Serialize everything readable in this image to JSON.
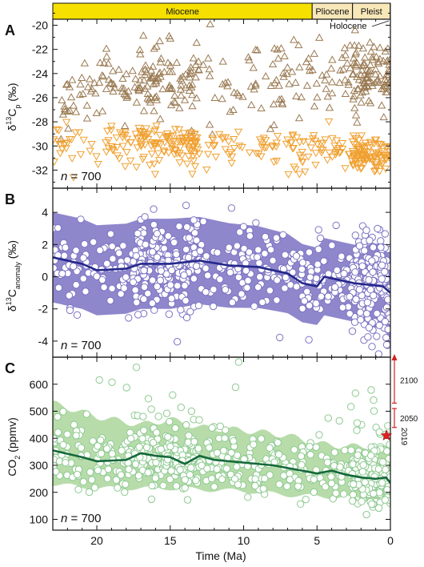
{
  "figure": {
    "epochs": [
      {
        "label": "Miocene",
        "start": 23.0,
        "end": 5.33,
        "color": "#f5e000"
      },
      {
        "label": "Pliocene",
        "start": 5.33,
        "end": 2.58,
        "color": "#f8e7b8"
      },
      {
        "label": "Pleist",
        "start": 2.58,
        "end": 0.0117,
        "color": "#f8e7b8"
      }
    ],
    "holocene_label": "Holocene",
    "xlabel": "Time (Ma)",
    "x_ticks": [
      "20",
      "15",
      "10",
      "5",
      "0"
    ],
    "x_tick_values": [
      20,
      15,
      10,
      5,
      0
    ],
    "xlim": [
      23,
      0
    ]
  },
  "chart_data": [
    {
      "type": "scatter",
      "panel_label": "A",
      "ylabel": "δ13Cp (‰)",
      "ylabel_main": "δ",
      "ylabel_sup": "13",
      "ylabel_c": "C",
      "ylabel_sub": "p",
      "ylabel_unit": "(‰)",
      "ylim": [
        -33.5,
        -19.5
      ],
      "y_ticks": [
        -20,
        -22,
        -24,
        -26,
        -28,
        -30,
        -32
      ],
      "y_tick_labels": [
        "-20",
        "-22",
        "-24",
        "-26",
        "-28",
        "-30",
        "-32"
      ],
      "n_label_pre": "n",
      "n_label_post": " = 700",
      "series": [
        {
          "marker": "triangle-up",
          "color": "#9a7a52",
          "approx_mean": -24.8,
          "approx_spread": 1.4,
          "trend": [
            [
              23,
              -26.5
            ],
            [
              20,
              -25.3
            ],
            [
              16,
              -24.6
            ],
            [
              13,
              -24.8
            ],
            [
              10,
              -25.0
            ],
            [
              6,
              -24.8
            ],
            [
              3,
              -24.4
            ],
            [
              0,
              -24.2
            ]
          ]
        },
        {
          "marker": "triangle-down",
          "color": "#f0a030",
          "approx_mean": -29.9,
          "approx_spread": 0.9,
          "trend": [
            [
              23,
              -29.8
            ],
            [
              20,
              -29.6
            ],
            [
              16,
              -29.8
            ],
            [
              13,
              -29.9
            ],
            [
              10,
              -30.0
            ],
            [
              6,
              -30.0
            ],
            [
              3,
              -30.4
            ],
            [
              0,
              -30.8
            ]
          ]
        }
      ]
    },
    {
      "type": "scatter",
      "panel_label": "B",
      "ylabel": "δ13Canomaly (‰)",
      "ylabel_main": "δ",
      "ylabel_sup": "13",
      "ylabel_c": "C",
      "ylabel_sub": "anomaly",
      "ylabel_unit": "(‰)",
      "ylim": [
        -5,
        5.5
      ],
      "y_ticks": [
        4,
        2,
        0,
        -2,
        -4
      ],
      "y_tick_labels": [
        "4",
        "2",
        "0",
        "-2",
        "-4"
      ],
      "n_label_pre": "n",
      "n_label_post": " = 700",
      "band_color": "#8f87cc",
      "line_color": "#25288a",
      "point_stroke": "#7b73c2",
      "mean_line": [
        [
          23,
          1.2
        ],
        [
          21,
          0.8
        ],
        [
          20,
          0.4
        ],
        [
          18,
          0.5
        ],
        [
          17,
          0.8
        ],
        [
          15,
          0.8
        ],
        [
          13,
          1.0
        ],
        [
          11,
          0.7
        ],
        [
          9,
          0.6
        ],
        [
          7,
          0.2
        ],
        [
          6,
          -0.4
        ],
        [
          5,
          -0.6
        ],
        [
          4.5,
          0.0
        ],
        [
          3.5,
          -0.2
        ],
        [
          2.5,
          -0.4
        ],
        [
          1.5,
          -0.5
        ],
        [
          0.5,
          -0.6
        ],
        [
          0,
          -1.0
        ]
      ],
      "band_halfwidth": [
        [
          23,
          2.8
        ],
        [
          15,
          2.8
        ],
        [
          8,
          2.5
        ],
        [
          5,
          2.4
        ],
        [
          2,
          2.4
        ],
        [
          0,
          2.8
        ]
      ]
    },
    {
      "type": "scatter",
      "panel_label": "C",
      "ylabel": "CO2 (ppmv)",
      "ylabel_main": "CO",
      "ylabel_sub": "2",
      "ylabel_unit": " (ppmv)",
      "ylim": [
        60,
        700
      ],
      "y_ticks": [
        600,
        500,
        400,
        300,
        200,
        100
      ],
      "y_tick_labels": [
        "600",
        "500",
        "400",
        "300",
        "200",
        "100"
      ],
      "n_label_pre": "n",
      "n_label_post": " = 700",
      "band_color": "#b7dcaa",
      "line_color": "#14683a",
      "point_stroke": "#8cc98f",
      "mean_line": [
        [
          23,
          355
        ],
        [
          21,
          330
        ],
        [
          20,
          315
        ],
        [
          18,
          320
        ],
        [
          17,
          345
        ],
        [
          16,
          335
        ],
        [
          15,
          330
        ],
        [
          14,
          305
        ],
        [
          13,
          335
        ],
        [
          12,
          320
        ],
        [
          10,
          310
        ],
        [
          8,
          300
        ],
        [
          6,
          280
        ],
        [
          5,
          270
        ],
        [
          4,
          280
        ],
        [
          3,
          265
        ],
        [
          2,
          255
        ],
        [
          1,
          250
        ],
        [
          0.3,
          255
        ],
        [
          0,
          235
        ]
      ],
      "band_upper": [
        [
          23,
          530
        ],
        [
          20,
          480
        ],
        [
          17,
          450
        ],
        [
          15,
          470
        ],
        [
          13,
          440
        ],
        [
          10,
          430
        ],
        [
          7,
          410
        ],
        [
          5,
          380
        ],
        [
          3,
          370
        ],
        [
          1,
          370
        ],
        [
          0,
          360
        ]
      ],
      "band_lower": [
        [
          23,
          230
        ],
        [
          20,
          215
        ],
        [
          17,
          215
        ],
        [
          15,
          215
        ],
        [
          13,
          210
        ],
        [
          10,
          205
        ],
        [
          7,
          190
        ],
        [
          5,
          185
        ],
        [
          3,
          180
        ],
        [
          1,
          175
        ],
        [
          0,
          170
        ]
      ],
      "projections": [
        {
          "label": "2100",
          "low": 530,
          "high": 700,
          "arrow": true,
          "color": "#d42020"
        },
        {
          "label": "2050",
          "low": 440,
          "high": 510,
          "arrow": false,
          "color": "#d42020"
        }
      ],
      "present": {
        "label": "2019",
        "value": 410,
        "color": "#e02020"
      }
    }
  ]
}
